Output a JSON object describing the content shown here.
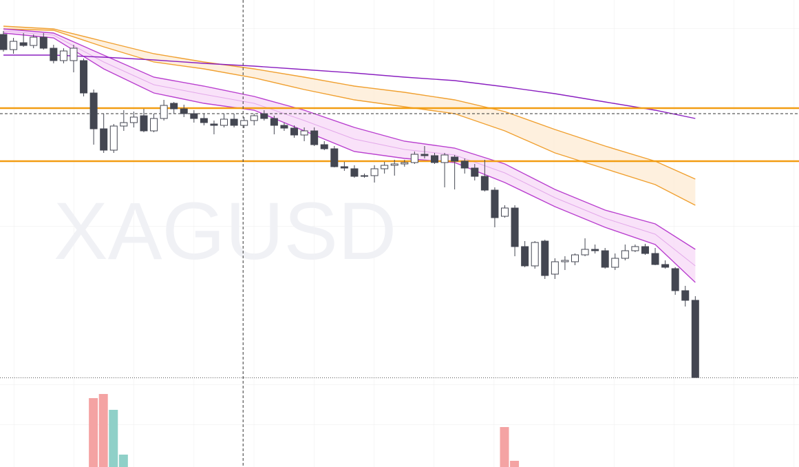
{
  "chart_data": {
    "type": "candlestick",
    "watermark": "XAGUSD",
    "ylim": [
      0,
      548
    ],
    "up_color": "#ffffff",
    "down_color": "#434651",
    "candles": [
      [
        498,
        503,
        473,
        476
      ],
      [
        476,
        493,
        470,
        488
      ],
      [
        486,
        500,
        480,
        482
      ],
      [
        482,
        498,
        478,
        494
      ],
      [
        494,
        500,
        476,
        478
      ],
      [
        478,
        483,
        456,
        460
      ],
      [
        460,
        478,
        456,
        474
      ],
      [
        460,
        483,
        443,
        478
      ],
      [
        460,
        463,
        408,
        413
      ],
      [
        413,
        418,
        338,
        361
      ],
      [
        361,
        383,
        326,
        330
      ],
      [
        330,
        368,
        326,
        365
      ],
      [
        365,
        388,
        358,
        370
      ],
      [
        370,
        386,
        363,
        378
      ],
      [
        380,
        390,
        356,
        358
      ],
      [
        358,
        383,
        356,
        376
      ],
      [
        376,
        403,
        373,
        395
      ],
      [
        398,
        400,
        383,
        390
      ],
      [
        390,
        396,
        378,
        383
      ],
      [
        383,
        388,
        370,
        376
      ],
      [
        376,
        383,
        366,
        370
      ],
      [
        368,
        373,
        353,
        366
      ],
      [
        366,
        383,
        363,
        375
      ],
      [
        375,
        383,
        363,
        366
      ],
      [
        366,
        378,
        362,
        373
      ],
      [
        373,
        383,
        366,
        380
      ],
      [
        383,
        388,
        373,
        376
      ],
      [
        376,
        380,
        353,
        366
      ],
      [
        366,
        370,
        358,
        362
      ],
      [
        362,
        366,
        348,
        352
      ],
      [
        352,
        363,
        343,
        358
      ],
      [
        358,
        363,
        336,
        338
      ],
      [
        338,
        343,
        330,
        332
      ],
      [
        332,
        336,
        305,
        306
      ],
      [
        306,
        313,
        300,
        304
      ],
      [
        303,
        308,
        290,
        292
      ],
      [
        292,
        296,
        290,
        293
      ],
      [
        293,
        308,
        283,
        303
      ],
      [
        303,
        313,
        296,
        308
      ],
      [
        308,
        316,
        293,
        310
      ],
      [
        310,
        316,
        306,
        312
      ],
      [
        312,
        328,
        310,
        324
      ],
      [
        324,
        336,
        318,
        322
      ],
      [
        322,
        326,
        310,
        312
      ],
      [
        312,
        326,
        276,
        323
      ],
      [
        320,
        323,
        273,
        314
      ],
      [
        314,
        318,
        296,
        304
      ],
      [
        304,
        310,
        286,
        292
      ],
      [
        292,
        316,
        270,
        272
      ],
      [
        272,
        276,
        218,
        232
      ],
      [
        234,
        250,
        232,
        246
      ],
      [
        246,
        250,
        176,
        190
      ],
      [
        190,
        198,
        160,
        162
      ],
      [
        162,
        198,
        158,
        196
      ],
      [
        198,
        200,
        143,
        148
      ],
      [
        150,
        173,
        143,
        168
      ],
      [
        168,
        176,
        156,
        170
      ],
      [
        168,
        180,
        163,
        178
      ],
      [
        178,
        202,
        176,
        186
      ],
      [
        186,
        193,
        180,
        184
      ],
      [
        184,
        188,
        158,
        160
      ],
      [
        160,
        180,
        156,
        173
      ],
      [
        173,
        193,
        170,
        184
      ],
      [
        184,
        193,
        182,
        190
      ],
      [
        190,
        194,
        178,
        180
      ],
      [
        180,
        188,
        163,
        164
      ],
      [
        164,
        170,
        158,
        160
      ],
      [
        158,
        160,
        120,
        126
      ],
      [
        126,
        133,
        103,
        112
      ],
      [
        112,
        118,
        0,
        0
      ]
    ],
    "overlay_x": [
      0,
      5,
      10,
      15,
      20,
      25,
      30,
      35,
      40,
      45,
      50,
      55,
      60,
      65,
      69
    ],
    "bands": [
      {
        "color": "#f0a030",
        "fill": "#fdebd3",
        "upper": [
          510,
          506,
          488,
          470,
          458,
          448,
          436,
          423,
          414,
          403,
          386,
          360,
          336,
          314,
          288
        ],
        "lower": [
          506,
          504,
          480,
          458,
          448,
          435,
          418,
          403,
          393,
          383,
          358,
          326,
          303,
          280,
          250
        ]
      },
      {
        "color": "#b93fcf",
        "fill": "#f7d8f7",
        "upper": [
          506,
          500,
          468,
          436,
          423,
          408,
          388,
          363,
          343,
          333,
          310,
          273,
          243,
          223,
          186
        ],
        "lower": [
          500,
          493,
          448,
          413,
          398,
          388,
          358,
          328,
          318,
          312,
          283,
          248,
          218,
          193,
          138
        ],
        "middle": [
          503,
          497,
          458,
          425,
          411,
          398,
          373,
          346,
          331,
          323,
          297,
          261,
          231,
          208,
          162
        ]
      }
    ],
    "lines": [
      {
        "color": "#8a1fc0",
        "values": [
          468,
          468,
          465,
          461,
          456,
          452,
          447,
          442,
          436,
          431,
          422,
          412,
          400,
          388,
          376
        ]
      }
    ],
    "levels": [
      {
        "value": 391,
        "color": "#f29d12"
      },
      {
        "value": 314,
        "color": "#f29d12"
      }
    ],
    "crosshair": {
      "x": 23.9,
      "y": 383
    },
    "volume_ylim": [
      0,
      130
    ],
    "volume": [
      {
        "x": 9,
        "value": 100,
        "color": "#f4a3a3"
      },
      {
        "x": 10,
        "value": 106,
        "color": "#f4a3a3"
      },
      {
        "x": 11,
        "value": 83,
        "color": "#8fd0c8"
      },
      {
        "x": 12,
        "value": 18,
        "color": "#8fd0c8"
      },
      {
        "x": 50,
        "value": 58,
        "color": "#f4a3a3"
      },
      {
        "x": 51,
        "value": 9,
        "color": "#f4a3a3"
      }
    ]
  }
}
